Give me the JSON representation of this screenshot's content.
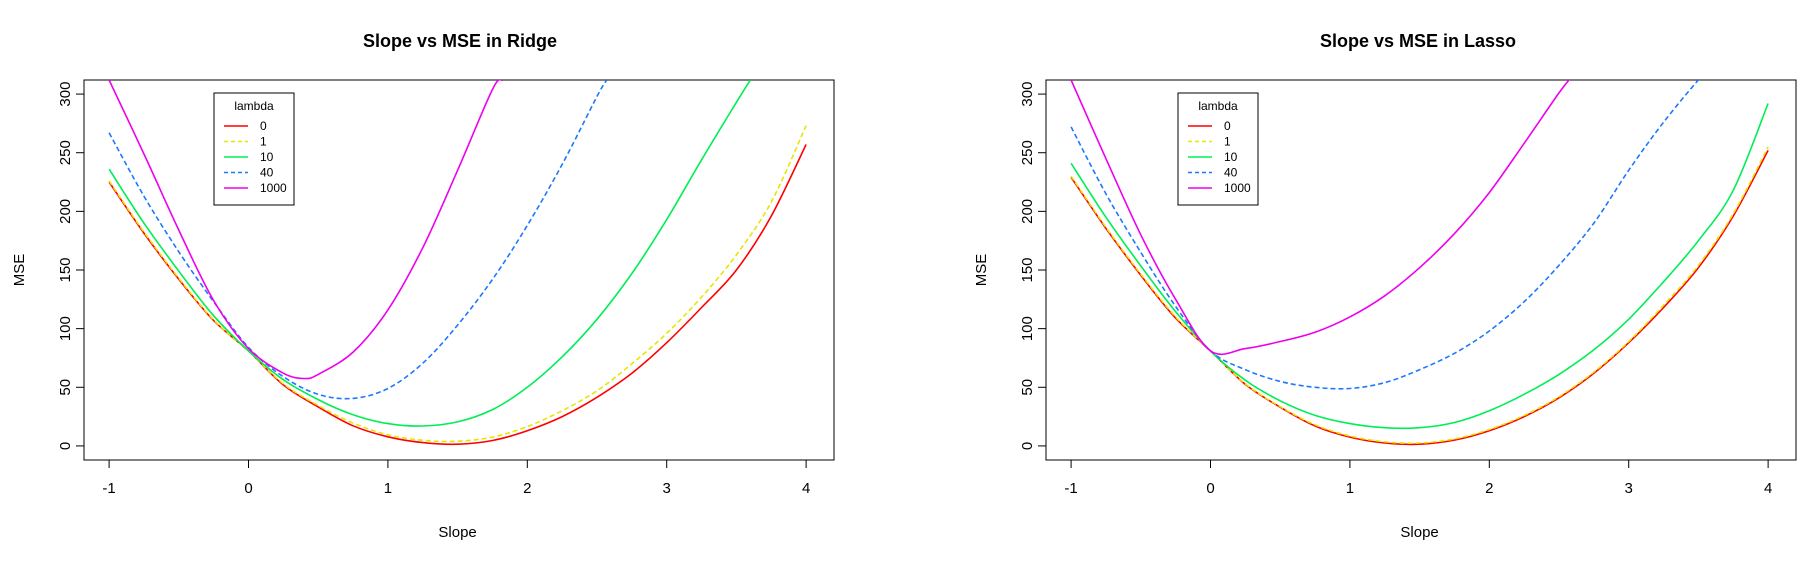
{
  "chart_data": [
    {
      "type": "line",
      "title": "Slope vs MSE in Ridge",
      "xlabel": "Slope",
      "ylabel": "MSE",
      "xlim": [
        -1.18,
        4.2
      ],
      "ylim": [
        -12,
        312
      ],
      "xticks": [
        -1,
        0,
        1,
        2,
        3,
        4
      ],
      "yticks": [
        0,
        50,
        100,
        150,
        200,
        250,
        300
      ],
      "legend": {
        "title": "lambda",
        "placement": "top-left"
      },
      "series": [
        {
          "name": "0",
          "color": "#ff0000",
          "dash": false,
          "x": [
            -1,
            -0.75,
            -0.5,
            -0.25,
            0,
            0.25,
            0.5,
            0.75,
            1,
            1.25,
            1.5,
            1.75,
            2,
            2.25,
            2.5,
            2.75,
            3,
            3.25,
            3.5,
            3.75,
            4
          ],
          "y": [
            225,
            181.5,
            142.1,
            106.9,
            81,
            52,
            33.3,
            17.2,
            7.8,
            2.8,
            1.5,
            4.6,
            13,
            25,
            41.5,
            62,
            88,
            118,
            150,
            196,
            257
          ]
        },
        {
          "name": "1",
          "color": "#e6e600",
          "dash": true,
          "x": [
            -1,
            -0.75,
            -0.5,
            -0.25,
            0,
            0.25,
            0.5,
            0.75,
            1,
            1.25,
            1.5,
            1.75,
            2,
            2.25,
            2.5,
            2.75,
            3,
            3.25,
            3.5,
            3.75,
            4
          ],
          "y": [
            226,
            182.5,
            143,
            107.5,
            81,
            53,
            34.5,
            19.5,
            9.5,
            4.8,
            4,
            7.5,
            16.5,
            30,
            47,
            70,
            96,
            127,
            163,
            208,
            273
          ]
        },
        {
          "name": "10",
          "color": "#00ee55",
          "dash": false,
          "x": [
            -1,
            -0.75,
            -0.5,
            -0.25,
            0,
            0.25,
            0.5,
            0.75,
            1,
            1.25,
            1.5,
            1.75,
            2,
            2.25,
            2.5,
            2.75,
            3,
            3.25,
            3.5,
            3.6
          ],
          "y": [
            236,
            190,
            149,
            111,
            81,
            56.5,
            39.5,
            26.5,
            19,
            17,
            20.5,
            31,
            50,
            76,
            108,
            147,
            193,
            244,
            293,
            312
          ]
        },
        {
          "name": "40",
          "color": "#1e78ff",
          "dash": true,
          "x": [
            -1,
            -0.75,
            -0.5,
            -0.25,
            0,
            0.25,
            0.5,
            0.75,
            1,
            1.25,
            1.5,
            1.75,
            2,
            2.25,
            2.5,
            2.57
          ],
          "y": [
            267,
            213,
            165.5,
            123,
            84,
            59,
            44,
            40.5,
            49,
            70.5,
            103,
            142,
            188,
            240,
            298,
            312
          ]
        },
        {
          "name": "1000",
          "color": "#ee00ee",
          "dash": false,
          "x": [
            -1,
            -0.75,
            -0.5,
            -0.25,
            0,
            0.25,
            0.4,
            0.5,
            0.75,
            1,
            1.25,
            1.5,
            1.75,
            1.82
          ],
          "y": [
            312,
            249,
            184,
            124,
            83,
            62,
            57.5,
            61,
            80,
            116,
            169,
            235,
            304,
            312
          ]
        }
      ]
    },
    {
      "type": "line",
      "title": "Slope vs MSE in Lasso",
      "xlabel": "Slope",
      "ylabel": "MSE",
      "xlim": [
        -1.18,
        4.2
      ],
      "ylim": [
        -12,
        312
      ],
      "xticks": [
        -1,
        0,
        1,
        2,
        3,
        4
      ],
      "yticks": [
        0,
        50,
        100,
        150,
        200,
        250,
        300
      ],
      "legend": {
        "title": "lambda",
        "placement": "top-left"
      },
      "series": [
        {
          "name": "0",
          "color": "#ff0000",
          "dash": false,
          "x": [
            -1,
            -0.75,
            -0.5,
            -0.25,
            0,
            0.25,
            0.5,
            0.75,
            1,
            1.25,
            1.5,
            1.75,
            2,
            2.25,
            2.5,
            2.75,
            3,
            3.25,
            3.5,
            3.75,
            4
          ],
          "y": [
            229,
            185.5,
            145.5,
            109,
            81,
            52.5,
            33,
            17,
            7.5,
            2.5,
            1.5,
            5,
            13,
            25,
            41,
            62,
            88,
            118,
            152,
            196,
            252
          ]
        },
        {
          "name": "1",
          "color": "#e6e600",
          "dash": true,
          "x": [
            -1,
            -0.75,
            -0.5,
            -0.25,
            0,
            0.25,
            0.5,
            0.75,
            1,
            1.25,
            1.5,
            1.75,
            2,
            2.25,
            2.5,
            2.75,
            3,
            3.25,
            3.5,
            3.75,
            4
          ],
          "y": [
            230,
            186.5,
            146.5,
            110,
            81,
            53,
            33.5,
            18,
            8.5,
            3.5,
            2.5,
            6,
            14,
            26,
            42,
            63,
            89,
            120,
            154,
            198,
            255
          ]
        },
        {
          "name": "10",
          "color": "#00ee55",
          "dash": false,
          "x": [
            -1,
            -0.75,
            -0.5,
            -0.25,
            0,
            0.25,
            0.5,
            0.75,
            1,
            1.25,
            1.5,
            1.75,
            2,
            2.25,
            2.5,
            2.75,
            3,
            3.25,
            3.5,
            3.75,
            4
          ],
          "y": [
            241,
            195,
            153.5,
            114.5,
            81,
            56,
            38.5,
            26,
            19,
            15.5,
            15.5,
            20,
            30,
            44,
            61,
            82,
            108,
            140,
            175,
            218,
            292
          ]
        },
        {
          "name": "40",
          "color": "#1e78ff",
          "dash": true,
          "x": [
            -1,
            -0.75,
            -0.5,
            -0.25,
            0,
            0.25,
            0.5,
            0.75,
            1,
            1.25,
            1.5,
            1.75,
            2,
            2.25,
            2.5,
            2.75,
            3,
            3.25,
            3.5,
            3.55
          ],
          "y": [
            272,
            215,
            165,
            119,
            81,
            65,
            55,
            50,
            49,
            54,
            65,
            79,
            98,
            123,
            154,
            190,
            235,
            276,
            312,
            316
          ]
        },
        {
          "name": "1000",
          "color": "#ee00ee",
          "dash": false,
          "x": [
            -1,
            -0.75,
            -0.5,
            -0.25,
            0,
            0.25,
            0.5,
            0.75,
            1,
            1.25,
            1.5,
            1.75,
            2,
            2.25,
            2.5,
            2.6
          ],
          "y": [
            312,
            245,
            180,
            125,
            81,
            83,
            89,
            97,
            110,
            128,
            152,
            181,
            216,
            258,
            301,
            316
          ]
        }
      ]
    }
  ]
}
